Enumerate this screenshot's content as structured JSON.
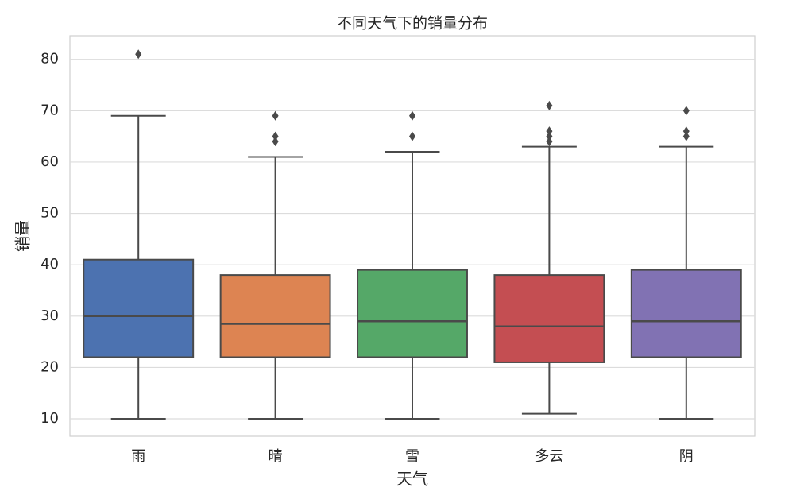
{
  "chart_data": {
    "type": "box",
    "title": "不同天气下的销量分布",
    "x_label": "天气",
    "y_label": "销量",
    "categories": [
      "雨",
      "晴",
      "雪",
      "多云",
      "阴"
    ],
    "colors": [
      "#4c72b0",
      "#dd8452",
      "#55a868",
      "#c44e52",
      "#8172b3"
    ],
    "boxes": [
      {
        "low": 10,
        "q1": 22,
        "median": 30,
        "q3": 41,
        "high": 69,
        "outliers": [
          81
        ]
      },
      {
        "low": 10,
        "q1": 22,
        "median": 28.5,
        "q3": 38,
        "high": 61,
        "outliers": [
          64,
          65,
          69
        ]
      },
      {
        "low": 10,
        "q1": 22,
        "median": 29,
        "q3": 39,
        "high": 62,
        "outliers": [
          65,
          69
        ]
      },
      {
        "low": 11,
        "q1": 21,
        "median": 28,
        "q3": 38,
        "high": 63,
        "outliers": [
          64,
          65,
          66,
          71
        ]
      },
      {
        "low": 10,
        "q1": 22,
        "median": 29,
        "q3": 39,
        "high": 63,
        "outliers": [
          65,
          66,
          70
        ]
      }
    ],
    "ylim": [
      6.6,
      84.6
    ],
    "yticks": [
      10,
      20,
      30,
      40,
      50,
      60,
      70,
      80
    ],
    "grid": true
  }
}
